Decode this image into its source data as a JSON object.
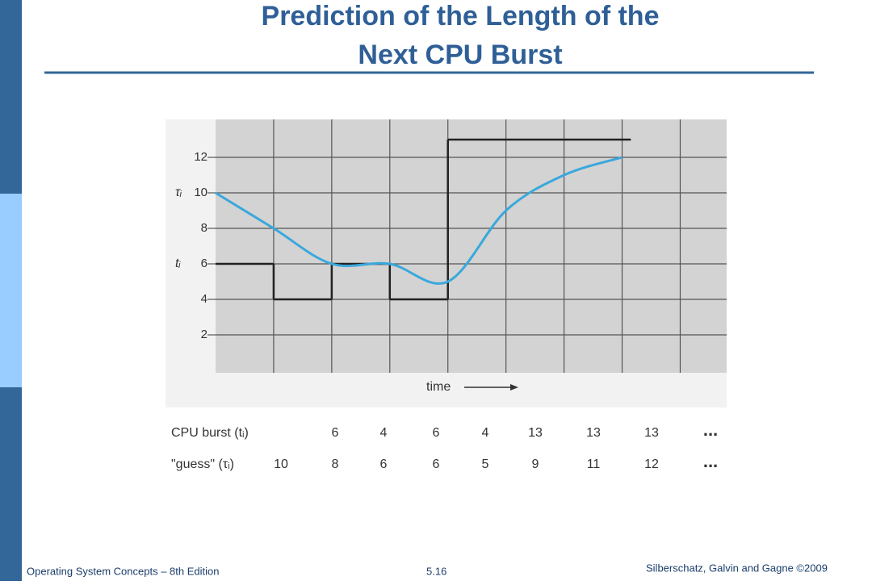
{
  "slide": {
    "title_lines": [
      "Prediction of the Length of the",
      "Next CPU Burst"
    ],
    "footer_left": "Operating System Concepts – 8th Edition",
    "footer_center": "5.16",
    "footer_right": "Silberschatz, Galvin and Gagne ©2009"
  },
  "chart_data": {
    "type": "line",
    "y_labels": [
      "τᵢ",
      "tᵢ"
    ],
    "xlabel": "time",
    "ylim": [
      0,
      14.1
    ],
    "yticks": [
      2,
      4,
      6,
      8,
      10,
      12
    ],
    "xlim": [
      0,
      8.8
    ],
    "grid": true,
    "continuation": "...",
    "series": [
      {
        "name": "CPU burst (tᵢ)",
        "color": "#222222",
        "style": "step",
        "values": [
          6,
          4,
          6,
          4,
          13,
          13,
          13
        ]
      },
      {
        "name": "\"guess\" (τᵢ)",
        "color": "#3aa8dc",
        "style": "smooth",
        "values": [
          10,
          8,
          6,
          6,
          5,
          9,
          11,
          12
        ]
      }
    ]
  }
}
